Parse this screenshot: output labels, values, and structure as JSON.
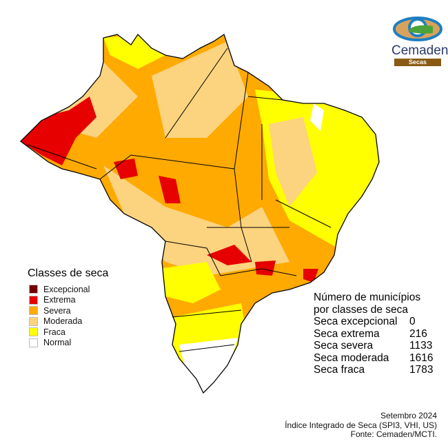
{
  "legend": {
    "title": "Classes de seca",
    "items": [
      {
        "label": "Excepcional",
        "color": "#730000"
      },
      {
        "label": "Extrema",
        "color": "#e60000"
      },
      {
        "label": "Severa",
        "color": "#ffaa00"
      },
      {
        "label": "Moderada",
        "color": "#fcd37f"
      },
      {
        "label": "Fraca",
        "color": "#ffff00"
      },
      {
        "label": "Normal",
        "color": "#ffffff"
      }
    ]
  },
  "stats": {
    "title_line1": "Número de municípios",
    "title_line2": "por classes de seca",
    "rows": [
      {
        "label": "Seca excepcional",
        "value": "0"
      },
      {
        "label": "Seca extrema",
        "value": "216"
      },
      {
        "label": "Seca severa",
        "value": "1133"
      },
      {
        "label": "Seca moderada",
        "value": "1616"
      },
      {
        "label": "Seca fraca",
        "value": "1783"
      }
    ]
  },
  "footer": {
    "date": "Setembro 2024",
    "index": "Índice Integrado de Seca (SPI3, VHI, US)",
    "source": "Fonte: Cemaden/MCTI."
  },
  "logo": {
    "name": "Cemaden",
    "sub": "Secas"
  }
}
